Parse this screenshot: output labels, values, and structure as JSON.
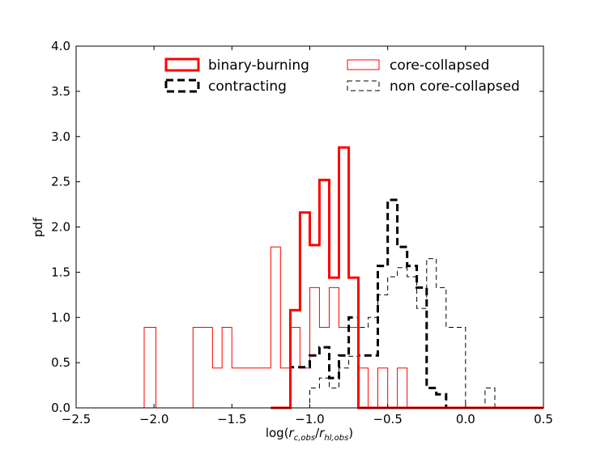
{
  "chart_data": {
    "type": "histogram",
    "title": "",
    "xlabel": "log(r_c,obs / r_hl,obs)",
    "xlabel_parts": {
      "prefix": "log(",
      "r1": "r",
      "sub1": "c,obs",
      "slash": "/",
      "r2": "r",
      "sub2": "hl,obs",
      "suffix": ")"
    },
    "ylabel": "pdf",
    "xlim": [
      -2.5,
      0.5
    ],
    "ylim": [
      0.0,
      4.0
    ],
    "xticks": [
      -2.5,
      -2.0,
      -1.5,
      -1.0,
      -0.5,
      0.0,
      0.5
    ],
    "xtick_labels": [
      "−2.5",
      "−2.0",
      "−1.5",
      "−1.0",
      "−0.5",
      "0.0",
      "0.5"
    ],
    "yticks": [
      0.0,
      0.5,
      1.0,
      1.5,
      2.0,
      2.5,
      3.0,
      3.5,
      4.0
    ],
    "ytick_labels": [
      "0.0",
      "0.5",
      "1.0",
      "1.5",
      "2.0",
      "2.5",
      "3.0",
      "3.5",
      "4.0"
    ],
    "legend_location": "upper center",
    "series": [
      {
        "name": "core-collapsed",
        "color": "#ff0000",
        "style": "thin-solid",
        "bin_edges": [
          -2.5,
          -2.063,
          -1.988,
          -1.75,
          -1.625,
          -1.563,
          -1.5,
          -1.438,
          -1.25,
          -1.188,
          -1.125,
          -1.063,
          -1.0,
          -0.938,
          -0.875,
          -0.813,
          -0.75,
          -0.688,
          -0.625,
          -0.563,
          -0.5,
          -0.438,
          -0.375,
          -0.313,
          0.5
        ],
        "values": [
          0.0,
          0.89,
          0.0,
          0.89,
          0.44,
          0.89,
          0.44,
          0.44,
          1.78,
          0.44,
          0.89,
          0.44,
          1.33,
          0.89,
          1.33,
          0.89,
          0.89,
          0.44,
          0.0,
          0.44,
          0.0,
          0.44,
          0.0,
          0.0
        ]
      },
      {
        "name": "binary-burning",
        "color": "#ff0000",
        "style": "thick-solid",
        "bin_edges": [
          -1.25,
          -1.125,
          -1.063,
          -1.0,
          -0.938,
          -0.875,
          -0.813,
          -0.75,
          -0.688,
          -0.625,
          0.5
        ],
        "values": [
          0.0,
          1.08,
          2.16,
          1.8,
          2.52,
          1.44,
          2.88,
          1.44,
          0.0,
          0.0
        ]
      },
      {
        "name": "contracting",
        "color": "#000000",
        "style": "thick-dashed",
        "bin_edges": [
          -1.25,
          -1.125,
          -1.0,
          -0.938,
          -0.875,
          -0.813,
          -0.75,
          -0.688,
          -0.625,
          -0.563,
          -0.5,
          -0.438,
          -0.375,
          -0.313,
          -0.25,
          -0.188,
          -0.125,
          -0.063,
          0.5
        ],
        "values": [
          0.0,
          0.45,
          0.58,
          0.67,
          0.33,
          0.58,
          1.0,
          0.58,
          0.58,
          1.57,
          2.3,
          1.78,
          1.57,
          1.33,
          0.22,
          0.15,
          0.0,
          0.0
        ]
      },
      {
        "name": "non core-collapsed",
        "color": "#000000",
        "style": "thin-dashed",
        "bin_edges": [
          -1.125,
          -1.0,
          -0.938,
          -0.875,
          -0.813,
          -0.75,
          -0.688,
          -0.625,
          -0.563,
          -0.5,
          -0.438,
          -0.375,
          -0.313,
          -0.25,
          -0.188,
          -0.125,
          -0.063,
          0.0,
          0.063,
          0.125,
          0.188,
          0.25,
          0.5
        ],
        "values": [
          0.0,
          0.22,
          0.33,
          0.22,
          0.44,
          0.57,
          0.89,
          1.0,
          1.25,
          1.45,
          1.55,
          1.45,
          1.1,
          1.65,
          1.33,
          0.89,
          0.89,
          0.0,
          0.0,
          0.22,
          0.0,
          0.0
        ]
      }
    ]
  }
}
